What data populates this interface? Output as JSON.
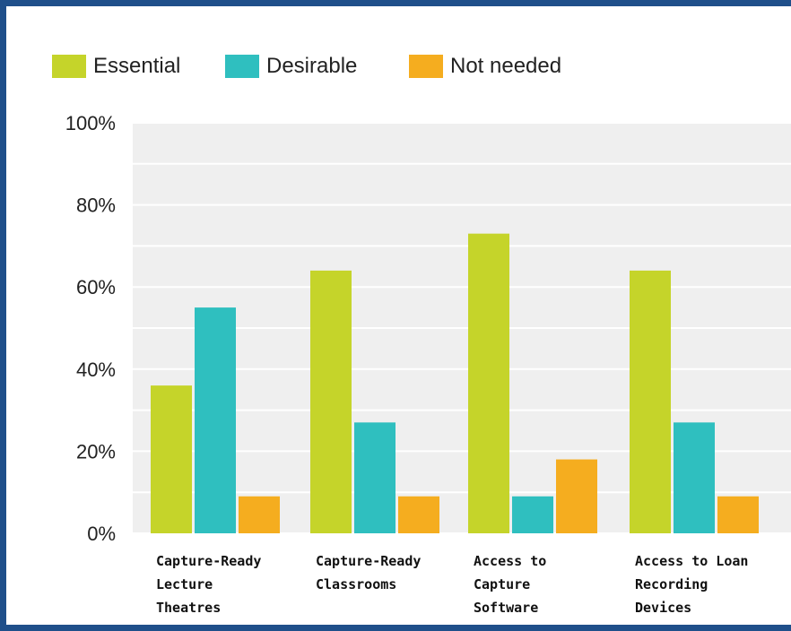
{
  "chart_data": {
    "type": "bar",
    "title": "",
    "xlabel": "",
    "ylabel": "",
    "ylim": [
      0,
      100
    ],
    "yticks": [
      "0%",
      "20%",
      "40%",
      "60%",
      "80%",
      "100%"
    ],
    "yticks_values": [
      0,
      20,
      40,
      60,
      80,
      100
    ],
    "grid": true,
    "legend_position": "top-left",
    "categories": [
      [
        "Capture-Ready",
        "Lecture",
        "Theatres"
      ],
      [
        "Capture-Ready",
        "Classrooms"
      ],
      [
        "Access to",
        "Capture",
        "Software"
      ],
      [
        "Access to Loan",
        "Recording",
        "Devices"
      ]
    ],
    "series": [
      {
        "name": "Essential",
        "color": "#c5d42a",
        "values": [
          36,
          64,
          73,
          64
        ]
      },
      {
        "name": "Desirable",
        "color": "#2fbfbf",
        "values": [
          55,
          27,
          9,
          27
        ]
      },
      {
        "name": "Not needed",
        "color": "#f5ad1f",
        "values": [
          9,
          9,
          18,
          9
        ]
      }
    ],
    "plot_background": "#efefef",
    "grid_color": "#ffffff"
  }
}
